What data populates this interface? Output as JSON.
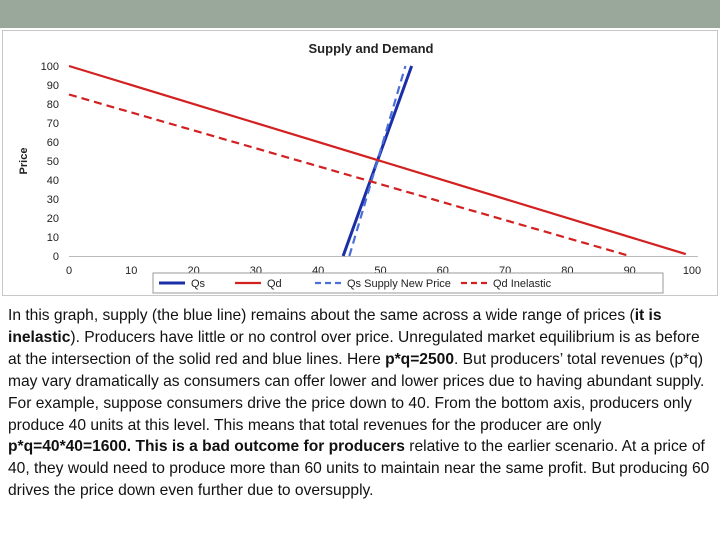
{
  "chart_data": {
    "type": "line",
    "title": "Supply and Demand",
    "ylabel": "Price",
    "xlabel": "",
    "xlim": [
      0,
      100
    ],
    "ylim": [
      0,
      100
    ],
    "x_ticks": [
      "0",
      "10",
      "20",
      "30",
      "40",
      "50",
      "60",
      "70",
      "80",
      "90",
      "100"
    ],
    "y_ticks": [
      "0",
      "10",
      "20",
      "30",
      "40",
      "50",
      "60",
      "70",
      "80",
      "90",
      "100"
    ],
    "grid": false,
    "legend_position": "bottom",
    "series": [
      {
        "name": "Qs",
        "color": "#1a2ea8",
        "dashed": false,
        "points": [
          [
            44,
            0
          ],
          [
            55,
            100
          ]
        ]
      },
      {
        "name": "Qd",
        "color": "#d32020",
        "dashed": false,
        "points": [
          [
            0,
            100
          ],
          [
            99,
            1
          ]
        ]
      },
      {
        "name": "Qs Supply New Price",
        "color": "#4a6fd6",
        "dashed": true,
        "points": [
          [
            45,
            0
          ],
          [
            54,
            100
          ]
        ]
      },
      {
        "name": "Qd Inelastic",
        "color": "#d32020",
        "dashed": true,
        "points": [
          [
            0,
            85
          ],
          [
            90,
            0
          ]
        ]
      }
    ]
  },
  "text": {
    "s1": "In this graph, supply (the blue line) remains about the same across a wide range of prices (",
    "s1b": "it is inelastic",
    "s2": "). Producers have little or no control over price. Unregulated market equilibrium is as before at the intersection of the solid red and blue lines. Here ",
    "s2b": "p*q=2500",
    "s3": ". But producers’ total revenues (p*q) may vary dramatically as consumers can offer lower and lower prices due to having abundant supply. For example, suppose consumers drive the price down to 40. From the bottom axis, producers only produce 40 units at this level. This means that total revenues for the producer are only ",
    "s3b": "p*q=40*40=1600. This is a bad outcome for producers",
    "s4": " relative to the earlier scenario. At a price of 40, they would need to produce more than 60 units to maintain near the same profit. But producing 60 drives the price down even further due to oversupply."
  }
}
